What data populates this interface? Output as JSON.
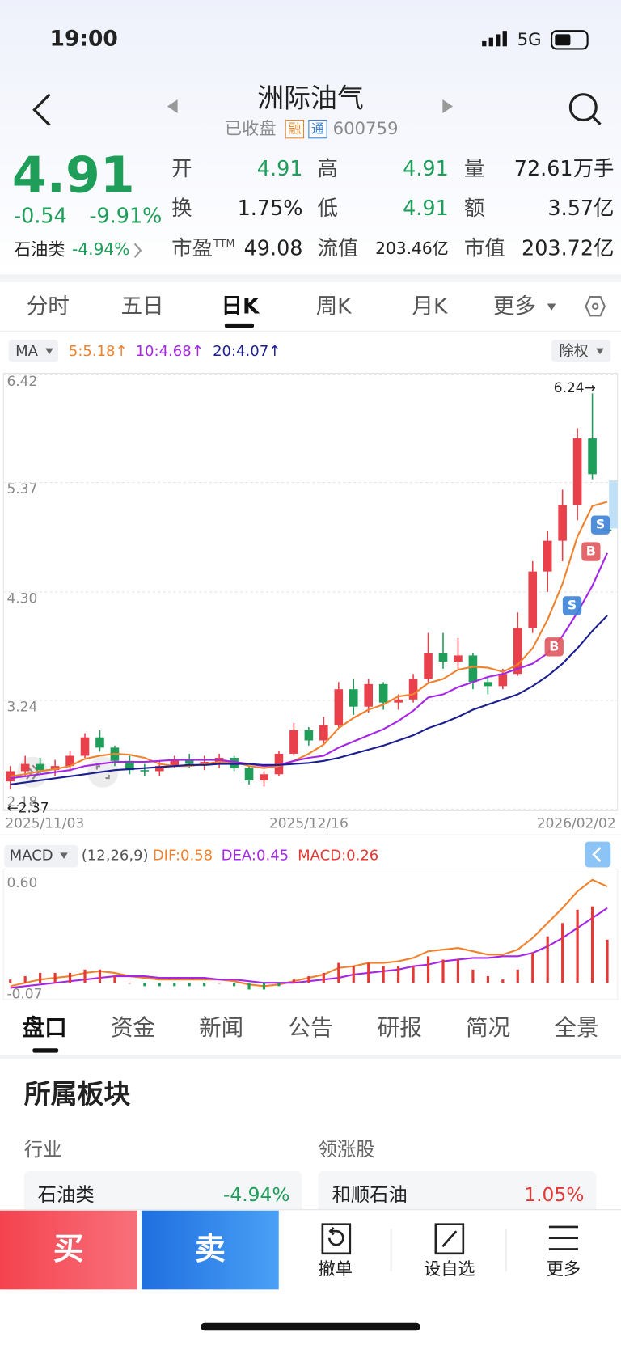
{
  "status": {
    "time": "19:00",
    "network": "5G"
  },
  "header": {
    "title": "洲际油气",
    "state": "已收盘",
    "tags": [
      "融",
      "通"
    ],
    "code": "600759"
  },
  "quote": {
    "price": "4.91",
    "change": "-0.54",
    "pct": "-9.91%",
    "sector": {
      "name": "石油类",
      "pct": "-4.94%"
    },
    "stats": [
      {
        "label": "开",
        "value": "4.91"
      },
      {
        "label": "高",
        "value": "4.91"
      },
      {
        "label": "量",
        "value": "72.61万手"
      },
      {
        "label": "换",
        "value": "1.75%"
      },
      {
        "label": "低",
        "value": "4.91"
      },
      {
        "label": "额",
        "value": "3.57亿"
      },
      {
        "label": "市盈",
        "sup": "TTM",
        "value": "49.08"
      },
      {
        "label": "流值",
        "value": "203.46亿"
      },
      {
        "label": "市值",
        "value": "203.72亿"
      }
    ]
  },
  "tabs": [
    "分时",
    "五日",
    "日K",
    "周K",
    "月K",
    "更多"
  ],
  "chart_data": [
    {
      "type": "candlestick",
      "indicator": "MA",
      "adjust": "除权",
      "grid": true,
      "ylim": [
        2.18,
        6.42
      ],
      "yticks": [
        6.42,
        5.37,
        {
          "value": 4.3,
          "label": "4.30"
        },
        3.24,
        2.18
      ],
      "x_labels": [
        "2025/11/03",
        "2025/12/16",
        "2026/02/02"
      ],
      "up_color": "#e8414b",
      "down_color": "#1f9e5a",
      "open": [
        2.45,
        2.55,
        2.62,
        2.56,
        2.6,
        2.7,
        2.88,
        2.78,
        2.65,
        2.56,
        2.55,
        2.6,
        2.66,
        2.62,
        2.64,
        2.68,
        2.58,
        2.46,
        2.52,
        2.72,
        2.95,
        2.85,
        3.0,
        3.35,
        3.18,
        3.4,
        3.22,
        3.25,
        3.45,
        3.7,
        3.62,
        3.68,
        3.42,
        3.38,
        3.5,
        3.95,
        4.5,
        4.8,
        5.15,
        5.8,
        4.91
      ],
      "high": [
        2.6,
        2.7,
        2.68,
        2.66,
        2.75,
        2.92,
        2.95,
        2.8,
        2.7,
        2.62,
        2.65,
        2.7,
        2.72,
        2.7,
        2.72,
        2.7,
        2.6,
        2.55,
        2.75,
        3.02,
        2.98,
        3.08,
        3.42,
        3.45,
        3.45,
        3.42,
        3.3,
        3.5,
        3.9,
        3.9,
        3.85,
        3.7,
        3.48,
        3.55,
        4.1,
        4.6,
        4.9,
        5.3,
        5.9,
        6.24,
        4.91
      ],
      "low": [
        2.37,
        2.5,
        2.52,
        2.5,
        2.55,
        2.68,
        2.74,
        2.6,
        2.52,
        2.5,
        2.5,
        2.58,
        2.58,
        2.56,
        2.58,
        2.55,
        2.42,
        2.4,
        2.5,
        2.7,
        2.8,
        2.82,
        2.98,
        3.1,
        3.12,
        3.15,
        3.15,
        3.22,
        3.42,
        3.55,
        3.55,
        3.35,
        3.3,
        3.35,
        3.48,
        3.9,
        4.3,
        4.6,
        5.0,
        5.4,
        4.91
      ],
      "close": [
        2.55,
        2.62,
        2.56,
        2.6,
        2.7,
        2.88,
        2.78,
        2.65,
        2.56,
        2.55,
        2.6,
        2.66,
        2.62,
        2.64,
        2.68,
        2.58,
        2.46,
        2.52,
        2.72,
        2.95,
        2.85,
        3.0,
        3.35,
        3.18,
        3.4,
        3.22,
        3.25,
        3.45,
        3.7,
        3.62,
        3.68,
        3.42,
        3.38,
        3.5,
        3.95,
        4.5,
        4.8,
        5.15,
        5.8,
        5.45,
        4.91
      ],
      "series": [
        {
          "name": "5:5.18↑",
          "color": "#f0822e",
          "values": [
            2.5,
            2.52,
            2.55,
            2.57,
            2.6,
            2.67,
            2.7,
            2.72,
            2.71,
            2.68,
            2.62,
            2.6,
            2.6,
            2.62,
            2.64,
            2.64,
            2.6,
            2.58,
            2.6,
            2.65,
            2.72,
            2.81,
            2.97,
            3.07,
            3.15,
            3.2,
            3.28,
            3.3,
            3.41,
            3.45,
            3.54,
            3.57,
            3.56,
            3.52,
            3.59,
            3.75,
            4.03,
            4.38,
            4.84,
            5.14,
            5.18
          ]
        },
        {
          "name": "10:4.68↑",
          "color": "#a626e8",
          "values": [
            2.48,
            2.5,
            2.52,
            2.54,
            2.56,
            2.6,
            2.62,
            2.64,
            2.64,
            2.64,
            2.65,
            2.66,
            2.66,
            2.66,
            2.66,
            2.64,
            2.62,
            2.6,
            2.61,
            2.65,
            2.68,
            2.7,
            2.78,
            2.84,
            2.9,
            2.96,
            3.04,
            3.14,
            3.27,
            3.3,
            3.37,
            3.42,
            3.47,
            3.5,
            3.55,
            3.6,
            3.7,
            3.87,
            4.1,
            4.36,
            4.68
          ]
        },
        {
          "name": "20:4.07↑",
          "color": "#1c1f8f",
          "values": [
            2.42,
            2.44,
            2.46,
            2.48,
            2.5,
            2.52,
            2.54,
            2.56,
            2.57,
            2.58,
            2.59,
            2.6,
            2.61,
            2.61,
            2.62,
            2.62,
            2.62,
            2.61,
            2.61,
            2.62,
            2.63,
            2.65,
            2.68,
            2.72,
            2.76,
            2.8,
            2.85,
            2.9,
            2.97,
            3.02,
            3.08,
            3.15,
            3.2,
            3.25,
            3.3,
            3.38,
            3.48,
            3.6,
            3.75,
            3.92,
            4.07
          ]
        }
      ],
      "annotations": {
        "max": "6.24→",
        "min": "←2.37"
      },
      "signals": [
        "S",
        "B",
        "S",
        "B"
      ]
    },
    {
      "type": "macd",
      "title": "MACD",
      "params": "(12,26,9)",
      "grid": false,
      "ylim": [
        -0.1,
        0.7
      ],
      "yticks": [
        {
          "value": 0.6,
          "label": "0.60"
        },
        -0.07
      ],
      "negative_color": "#1f9e5a",
      "series": [
        {
          "name": "DIF:0.58",
          "color": "#f0822e",
          "kind": "line",
          "values": [
            -0.02,
            0,
            0.02,
            0.03,
            0.04,
            0.06,
            0.07,
            0.06,
            0.04,
            0.03,
            0.02,
            0.02,
            0.02,
            0.02,
            0.02,
            0.01,
            -0.01,
            -0.02,
            -0.01,
            0.01,
            0.03,
            0.05,
            0.09,
            0.1,
            0.12,
            0.12,
            0.13,
            0.15,
            0.19,
            0.2,
            0.21,
            0.19,
            0.17,
            0.17,
            0.2,
            0.27,
            0.36,
            0.45,
            0.55,
            0.62,
            0.58
          ]
        },
        {
          "name": "DEA:0.45",
          "color": "#a626e8",
          "kind": "line",
          "values": [
            -0.03,
            -0.02,
            -0.01,
            0,
            0.01,
            0.02,
            0.03,
            0.04,
            0.04,
            0.04,
            0.03,
            0.03,
            0.03,
            0.03,
            0.02,
            0.02,
            0.01,
            0,
            0,
            0,
            0.01,
            0.02,
            0.03,
            0.05,
            0.06,
            0.07,
            0.08,
            0.1,
            0.11,
            0.13,
            0.14,
            0.15,
            0.15,
            0.16,
            0.16,
            0.18,
            0.22,
            0.27,
            0.33,
            0.39,
            0.45
          ]
        },
        {
          "name": "MACD:0.26",
          "color": "#e53935",
          "kind": "bar",
          "values": [
            0.02,
            0.04,
            0.06,
            0.06,
            0.06,
            0.08,
            0.08,
            0.04,
            0,
            -0.02,
            -0.02,
            -0.02,
            -0.02,
            -0.02,
            0,
            -0.02,
            -0.04,
            -0.04,
            -0.02,
            0.02,
            0.04,
            0.06,
            0.12,
            0.1,
            0.12,
            0.1,
            0.1,
            0.1,
            0.16,
            0.14,
            0.14,
            0.08,
            0.04,
            0.02,
            0.08,
            0.18,
            0.28,
            0.36,
            0.44,
            0.46,
            0.26
          ]
        }
      ]
    }
  ],
  "detail_tabs": [
    "盘口",
    "资金",
    "新闻",
    "公告",
    "研报",
    "简况",
    "全景"
  ],
  "sector": {
    "title": "所属板块",
    "industry_label": "行业",
    "leader_label": "领涨股",
    "industry": {
      "name": "石油类",
      "pct": "-4.94%"
    },
    "leader": {
      "name": "和顺石油",
      "pct": "1.05%"
    }
  },
  "actions": {
    "buy": "买",
    "sell": "卖",
    "cancel": "撤单",
    "watch": "设自选",
    "more": "更多"
  }
}
